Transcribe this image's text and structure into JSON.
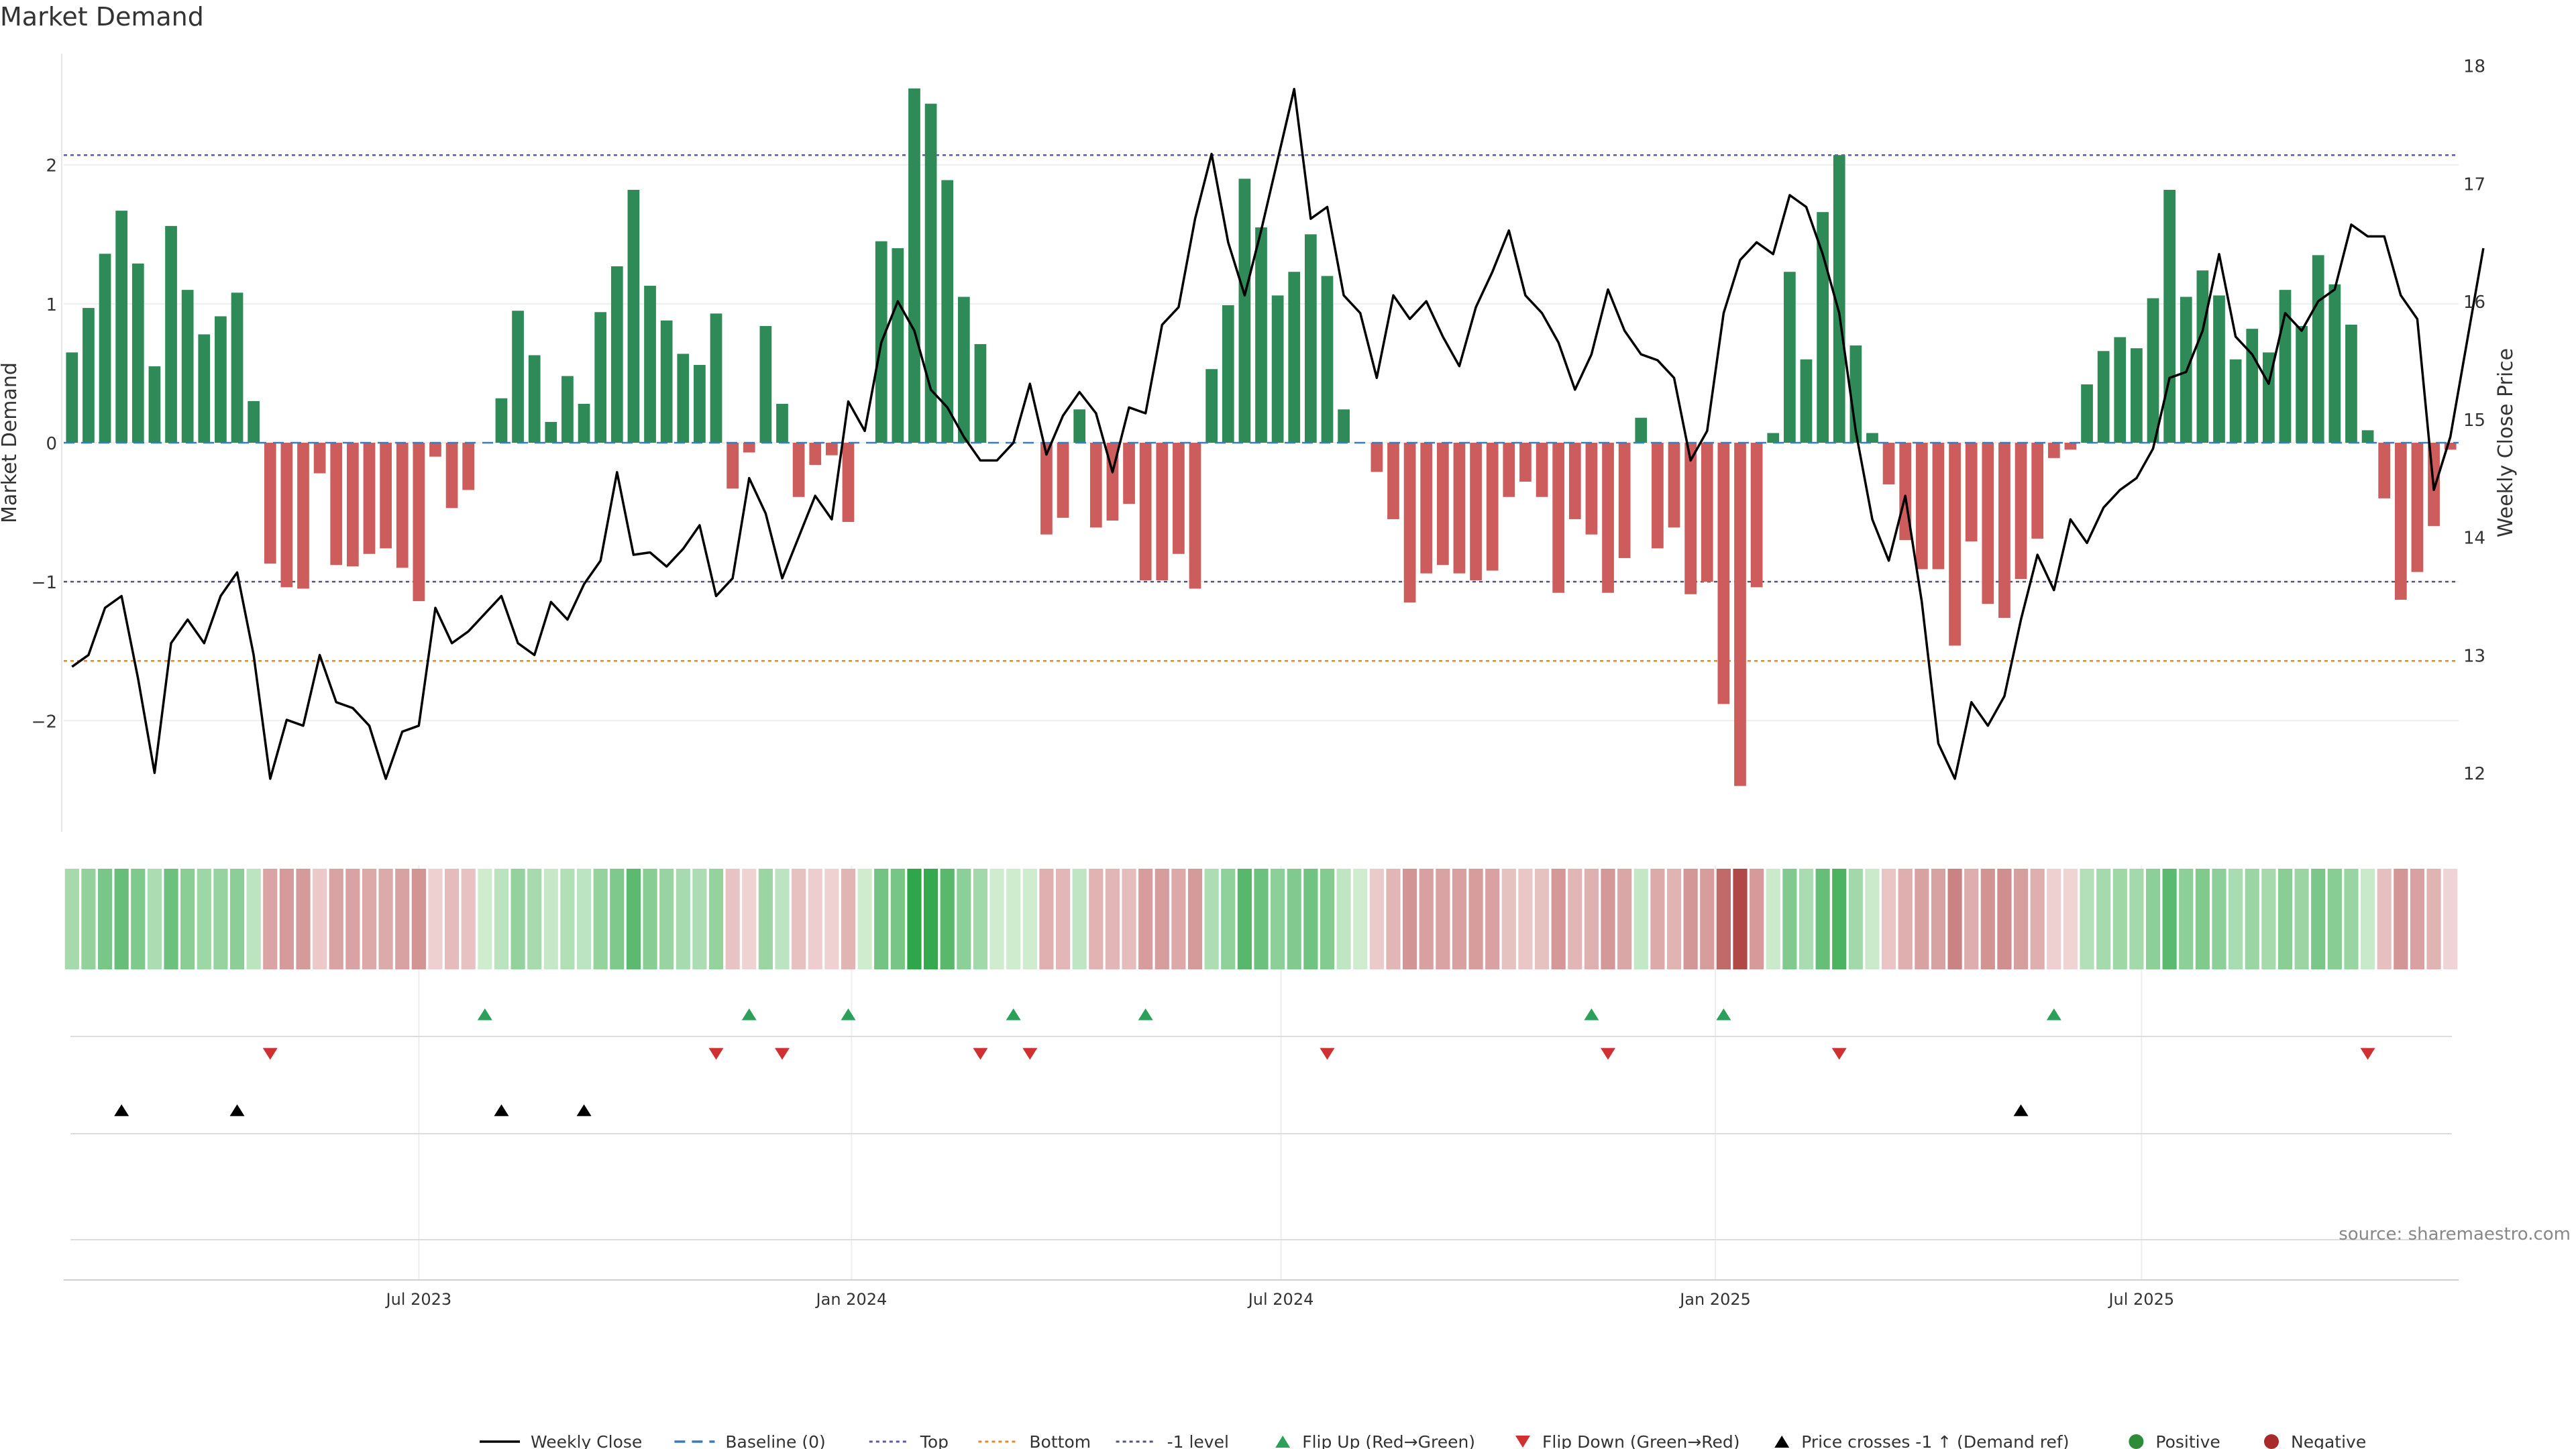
{
  "chart_data": {
    "type": "bar",
    "title": "Market Demand",
    "ylabel": "Market Demand",
    "y2label": "Weekly Close Price",
    "ylim": [
      -2.8,
      2.8
    ],
    "y2lim": [
      11.5,
      18.1
    ],
    "yticks": [
      -2,
      -1,
      0,
      1,
      2
    ],
    "y2ticks": [
      12,
      13,
      14,
      15,
      16,
      17,
      18
    ],
    "x_ticks": [
      {
        "label": "Jul 2023",
        "week": 21.5
      },
      {
        "label": "Jan 2024",
        "week": 47.7
      },
      {
        "label": "Jul 2024",
        "week": 73.7
      },
      {
        "label": "Jan 2025",
        "week": 100
      },
      {
        "label": "Jul 2025",
        "week": 125.8
      }
    ],
    "reference_lines": {
      "top": 2.07,
      "bottom": -1.57,
      "minus_one": -1.0,
      "baseline": 0
    },
    "demand": [
      0.65,
      0.97,
      1.36,
      1.67,
      1.29,
      0.55,
      1.56,
      1.1,
      0.78,
      0.91,
      1.08,
      0.3,
      -0.87,
      -1.04,
      -1.05,
      -0.22,
      -0.88,
      -0.89,
      -0.8,
      -0.76,
      -0.9,
      -1.14,
      -0.1,
      -0.47,
      -0.34,
      0.0,
      0.32,
      0.95,
      0.63,
      0.15,
      0.48,
      0.28,
      0.94,
      1.27,
      1.82,
      1.13,
      0.88,
      0.64,
      0.56,
      0.93,
      -0.33,
      -0.07,
      0.84,
      0.28,
      -0.39,
      -0.16,
      -0.09,
      -0.57,
      0.0,
      1.45,
      1.4,
      2.55,
      2.44,
      1.89,
      1.05,
      0.71,
      0.0,
      0.0,
      0.0,
      -0.66,
      -0.54,
      0.24,
      -0.61,
      -0.56,
      -0.44,
      -0.99,
      -0.99,
      -0.8,
      -1.05,
      0.53,
      0.99,
      1.9,
      1.55,
      1.06,
      1.23,
      1.5,
      1.2,
      0.24,
      0.0,
      -0.21,
      -0.55,
      -1.15,
      -0.94,
      -0.88,
      -0.94,
      -0.99,
      -0.92,
      -0.39,
      -0.28,
      -0.39,
      -1.08,
      -0.55,
      -0.66,
      -1.08,
      -0.83,
      0.18,
      -0.76,
      -0.61,
      -1.09,
      -1.0,
      -1.88,
      -2.47,
      -1.04,
      0.07,
      1.23,
      0.6,
      1.66,
      2.07,
      0.7,
      0.07,
      -0.3,
      -0.7,
      -0.91,
      -0.91,
      -1.46,
      -0.71,
      -1.16,
      -1.26,
      -0.98,
      -0.69,
      -0.11,
      -0.05,
      0.42,
      0.66,
      0.76,
      0.68,
      1.04,
      1.82,
      1.05,
      1.24,
      1.06,
      0.6,
      0.82,
      0.65,
      1.1,
      0.84,
      1.35,
      1.14,
      0.85,
      0.09,
      -0.4,
      -1.13,
      -0.93,
      -0.6,
      -0.05
    ],
    "close": [
      12.9,
      13.0,
      13.4,
      13.5,
      12.8,
      12.0,
      13.1,
      13.3,
      13.1,
      13.5,
      13.7,
      13.0,
      11.95,
      12.45,
      12.4,
      13.0,
      12.6,
      12.55,
      12.4,
      11.95,
      12.35,
      12.4,
      13.4,
      13.1,
      13.2,
      13.35,
      13.5,
      13.1,
      13.0,
      13.45,
      13.3,
      13.6,
      13.8,
      14.55,
      13.85,
      13.87,
      13.75,
      13.9,
      14.1,
      13.5,
      13.65,
      14.5,
      14.2,
      13.65,
      14.0,
      14.35,
      14.15,
      15.15,
      14.9,
      15.65,
      16.0,
      15.75,
      15.25,
      15.1,
      14.85,
      14.65,
      14.65,
      14.8,
      15.3,
      14.7,
      15.03,
      15.23,
      15.05,
      14.55,
      15.1,
      15.05,
      15.8,
      15.95,
      16.7,
      17.25,
      16.5,
      16.05,
      16.6,
      17.2,
      17.8,
      16.7,
      16.8,
      16.05,
      15.9,
      15.35,
      16.05,
      15.85,
      16.0,
      15.7,
      15.45,
      15.95,
      16.25,
      16.6,
      16.05,
      15.9,
      15.65,
      15.25,
      15.55,
      16.1,
      15.75,
      15.55,
      15.5,
      15.35,
      14.65,
      14.9,
      15.9,
      16.35,
      16.5,
      16.4,
      16.9,
      16.8,
      16.4,
      15.9,
      14.9,
      14.15,
      13.8,
      14.35,
      13.45,
      12.25,
      11.95,
      12.6,
      12.4,
      12.65,
      13.3,
      13.85,
      13.55,
      14.15,
      13.95,
      14.25,
      14.4,
      14.5,
      14.75,
      15.35,
      15.4,
      15.75,
      16.4,
      15.7,
      15.55,
      15.3,
      15.9,
      15.75,
      16.0,
      16.1,
      16.65,
      16.55,
      16.55,
      16.05,
      15.85,
      14.4,
      14.85,
      15.65,
      16.45
    ],
    "flip_up_weeks": [
      25,
      41,
      47,
      57,
      65,
      92,
      100,
      120
    ],
    "flip_down_weeks": [
      12,
      39,
      43,
      55,
      58,
      76,
      93,
      107,
      139
    ],
    "cross_up_weeks": [
      3,
      10,
      26,
      31,
      118
    ]
  },
  "source_label": "source: sharemaestro.com",
  "legend": [
    {
      "label": "Weekly Close",
      "kind": "line-solid",
      "color": "#000000"
    },
    {
      "label": "Baseline (0)",
      "kind": "line-dash",
      "color": "#3a7ac0"
    },
    {
      "label": "Top",
      "kind": "line-dot",
      "color": "#5a5aa8"
    },
    {
      "label": "Bottom",
      "kind": "line-dot",
      "color": "#e08a2c"
    },
    {
      "label": "-1 level",
      "kind": "line-dot",
      "color": "#555577"
    },
    {
      "label": "Flip Up (Red→Green)",
      "kind": "tri-up",
      "color": "#2ca05a"
    },
    {
      "label": "Flip Down (Green→Red)",
      "kind": "tri-down",
      "color": "#d03030"
    },
    {
      "label": "Price crosses -1 ↑ (Demand ref)",
      "kind": "tri-up",
      "color": "#000000"
    },
    {
      "label": "Positive",
      "kind": "dot",
      "color": "#2e8b3a"
    },
    {
      "label": "Negative",
      "kind": "dot",
      "color": "#a82a2a"
    }
  ],
  "colors": {
    "positive": "#2e8b57",
    "negative": "#cd5c5c"
  }
}
